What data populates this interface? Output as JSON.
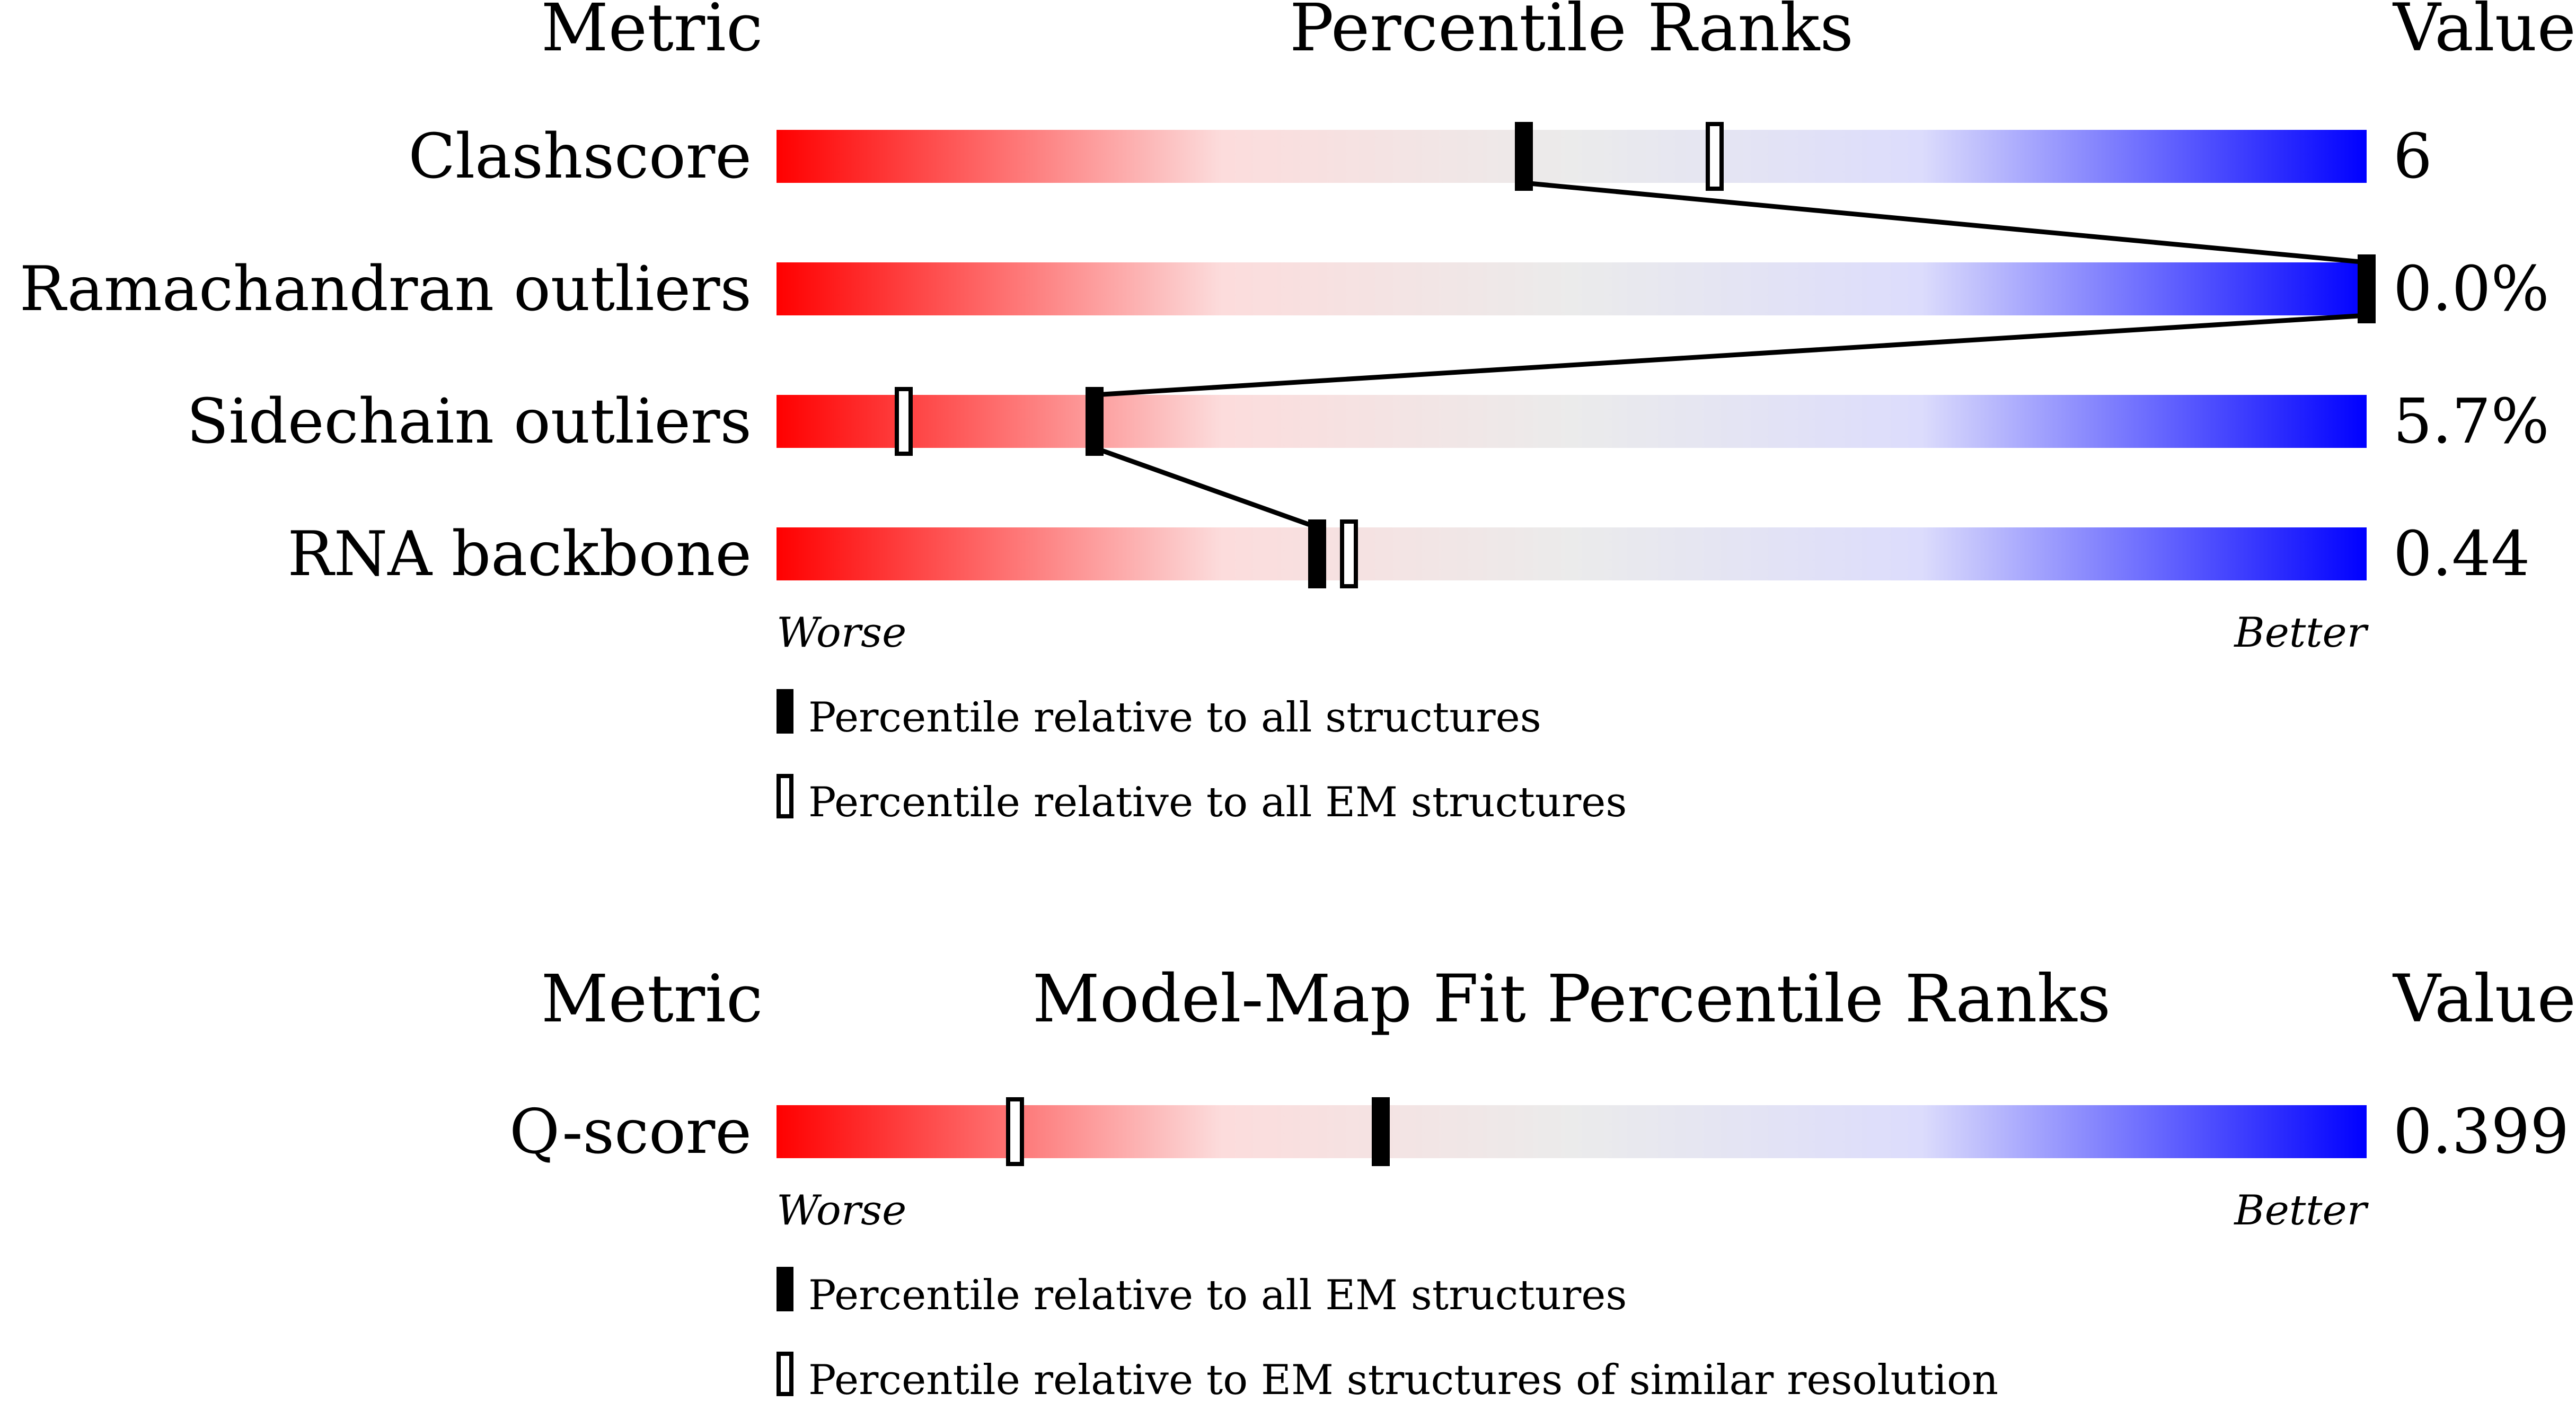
{
  "colors": {
    "worse": "#ff0000",
    "worse_light": "#fcdcdc",
    "neutral": "#ebebeb",
    "better_light": "#dcdcfc",
    "better": "#0000ff",
    "marker": "#000000"
  },
  "chart_data": [
    {
      "type": "bar",
      "headers": {
        "metric": "Metric",
        "title": "Percentile Ranks",
        "value": "Value"
      },
      "axis": {
        "worse": "Worse",
        "better": "Better",
        "range": [
          0,
          100
        ]
      },
      "rows": [
        {
          "label": "Clashscore",
          "value": "6",
          "percentile_all": 47,
          "percentile_em": 59
        },
        {
          "label": "Ramachandran outliers",
          "value": "0.0%",
          "percentile_all": 100,
          "percentile_em": 100
        },
        {
          "label": "Sidechain outliers",
          "value": "5.7%",
          "percentile_all": 20,
          "percentile_em": 8
        },
        {
          "label": "RNA backbone",
          "value": "0.44",
          "percentile_all": 34,
          "percentile_em": 36
        }
      ],
      "connect_all_markers": true,
      "legend": {
        "filled": "Percentile relative to all structures",
        "open": "Percentile relative to all EM structures"
      }
    },
    {
      "type": "bar",
      "headers": {
        "metric": "Metric",
        "title": "Model-Map Fit Percentile Ranks",
        "value": "Value"
      },
      "axis": {
        "worse": "Worse",
        "better": "Better",
        "range": [
          0,
          100
        ]
      },
      "rows": [
        {
          "label": "Q-score",
          "value": "0.399",
          "percentile_all": 38,
          "percentile_em": 15
        }
      ],
      "connect_all_markers": false,
      "legend": {
        "filled": "Percentile relative to all EM structures",
        "open": "Percentile relative to EM structures of similar resolution"
      }
    }
  ]
}
